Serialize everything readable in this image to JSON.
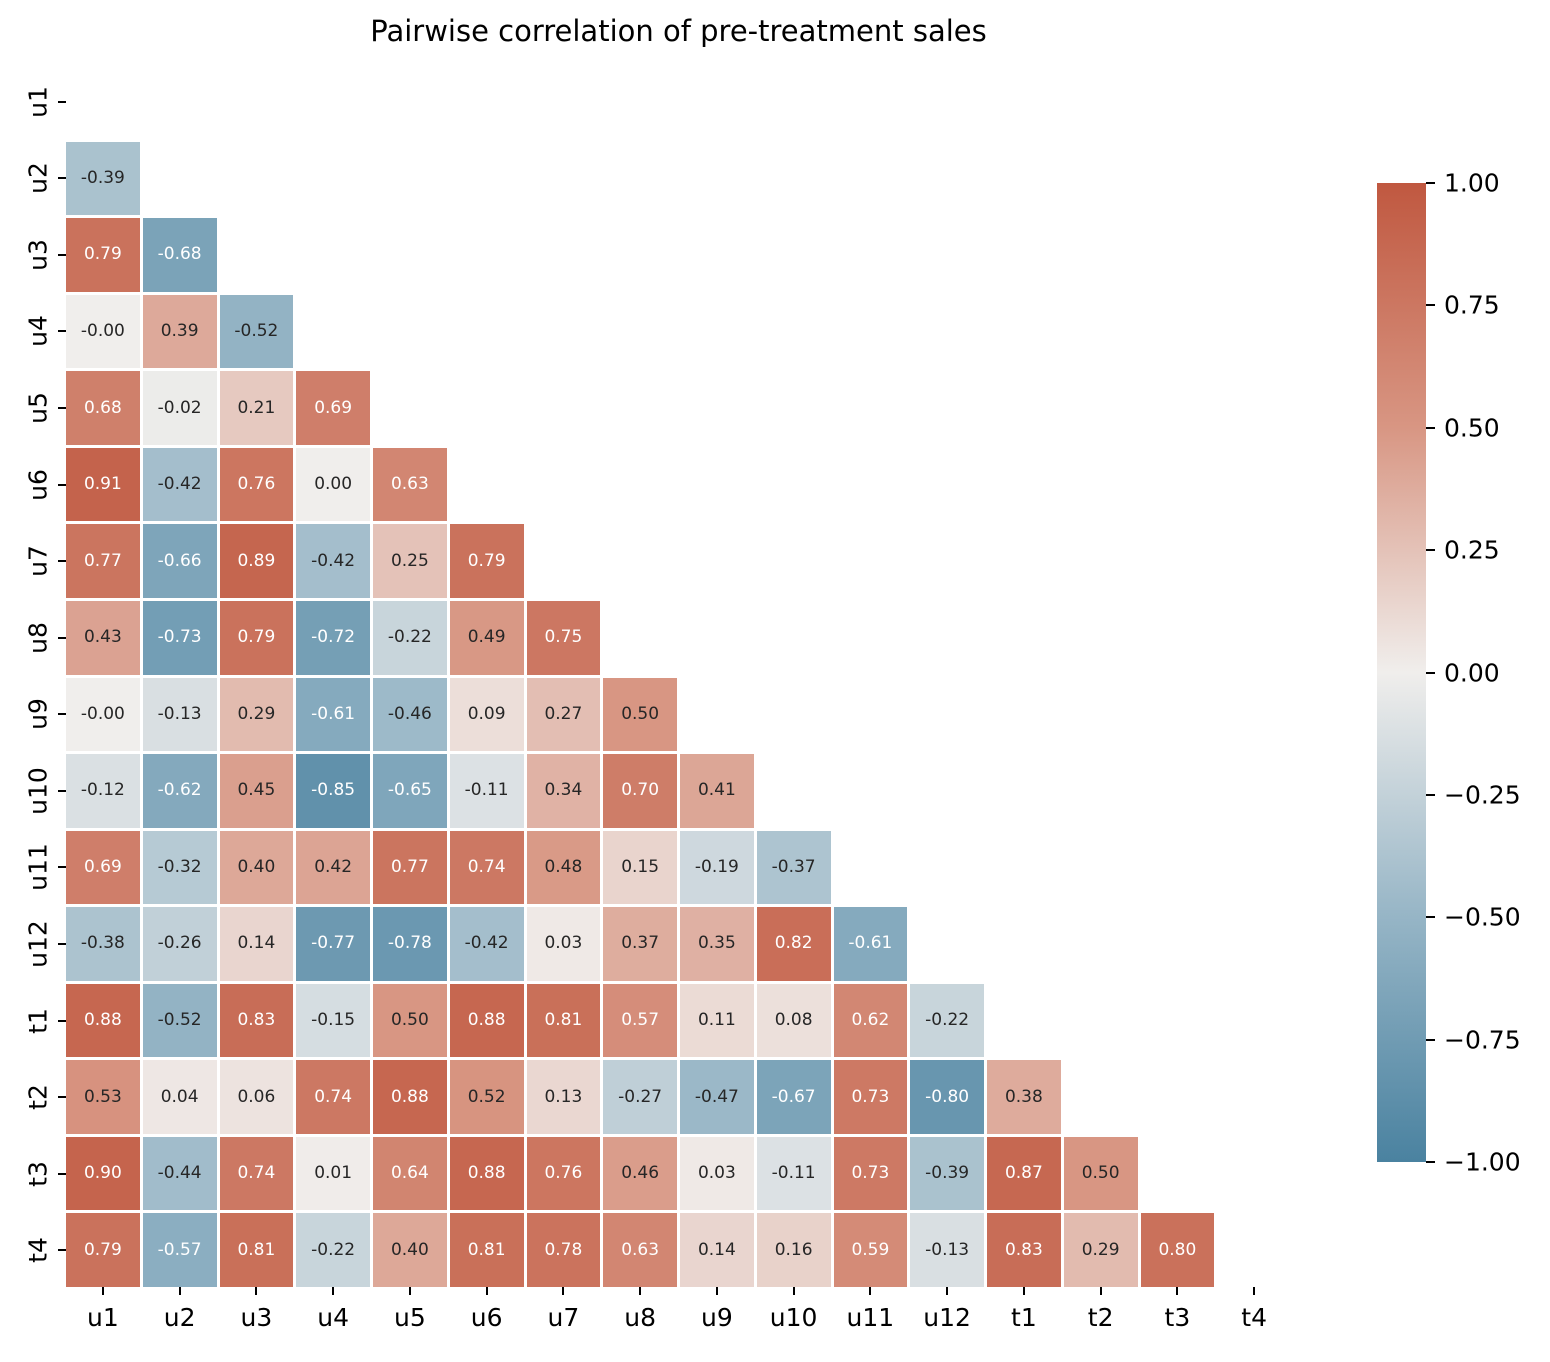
{
  "chart_data": {
    "type": "heatmap",
    "title": "Pairwise correlation of pre-treatment sales",
    "mask": "upper-triangle-and-diagonal",
    "labels": [
      "u1",
      "u2",
      "u3",
      "u4",
      "u5",
      "u6",
      "u7",
      "u8",
      "u9",
      "u10",
      "u11",
      "u12",
      "t1",
      "t2",
      "t3",
      "t4"
    ],
    "matrix": [
      [],
      [
        "-0.39"
      ],
      [
        "0.79",
        "-0.68"
      ],
      [
        "-0.00",
        "0.39",
        "-0.52"
      ],
      [
        "0.68",
        "-0.02",
        "0.21",
        "0.69"
      ],
      [
        "0.91",
        "-0.42",
        "0.76",
        "0.00",
        "0.63"
      ],
      [
        "0.77",
        "-0.66",
        "0.89",
        "-0.42",
        "0.25",
        "0.79"
      ],
      [
        "0.43",
        "-0.73",
        "0.79",
        "-0.72",
        "-0.22",
        "0.49",
        "0.75"
      ],
      [
        "-0.00",
        "-0.13",
        "0.29",
        "-0.61",
        "-0.46",
        "0.09",
        "0.27",
        "0.50"
      ],
      [
        "-0.12",
        "-0.62",
        "0.45",
        "-0.85",
        "-0.65",
        "-0.11",
        "0.34",
        "0.70",
        "0.41"
      ],
      [
        "0.69",
        "-0.32",
        "0.40",
        "0.42",
        "0.77",
        "0.74",
        "0.48",
        "0.15",
        "-0.19",
        "-0.37"
      ],
      [
        "-0.38",
        "-0.26",
        "0.14",
        "-0.77",
        "-0.78",
        "-0.42",
        "0.03",
        "0.37",
        "0.35",
        "0.82",
        "-0.61"
      ],
      [
        "0.88",
        "-0.52",
        "0.83",
        "-0.15",
        "0.50",
        "0.88",
        "0.81",
        "0.57",
        "0.11",
        "0.08",
        "0.62",
        "-0.22"
      ],
      [
        "0.53",
        "0.04",
        "0.06",
        "0.74",
        "0.88",
        "0.52",
        "0.13",
        "-0.27",
        "-0.47",
        "-0.67",
        "0.73",
        "-0.80",
        "0.38"
      ],
      [
        "0.90",
        "-0.44",
        "0.74",
        "0.01",
        "0.64",
        "0.88",
        "0.76",
        "0.46",
        "0.03",
        "-0.11",
        "0.73",
        "-0.39",
        "0.87",
        "0.50"
      ],
      [
        "0.79",
        "-0.57",
        "0.81",
        "-0.22",
        "0.40",
        "0.81",
        "0.78",
        "0.63",
        "0.14",
        "0.16",
        "0.59",
        "-0.13",
        "0.83",
        "0.29",
        "0.80"
      ]
    ],
    "colorbar": {
      "min": -1,
      "max": 1,
      "ticks": [
        {
          "value": 1.0,
          "label": "1.00"
        },
        {
          "value": 0.75,
          "label": "0.75"
        },
        {
          "value": 0.5,
          "label": "0.50"
        },
        {
          "value": 0.25,
          "label": "0.25"
        },
        {
          "value": 0.0,
          "label": "0.00"
        },
        {
          "value": -0.25,
          "label": "−0.25"
        },
        {
          "value": -0.5,
          "label": "−0.50"
        },
        {
          "value": -0.75,
          "label": "−0.75"
        },
        {
          "value": -1.0,
          "label": "−1.00"
        }
      ]
    },
    "colormap": {
      "stops": [
        {
          "value": -1.0,
          "color": "#4A82A0"
        },
        {
          "value": -0.5,
          "color": "#96B5C6"
        },
        {
          "value": 0.0,
          "color": "#F0EEEC"
        },
        {
          "value": 0.5,
          "color": "#D89683"
        },
        {
          "value": 1.0,
          "color": "#C05840"
        }
      ]
    },
    "annotation_colors": {
      "light_text": "#FFFFFF",
      "dark_text": "#262626",
      "white_text_abs_threshold": 0.55
    },
    "axis_color": "#000000",
    "background": "#FFFFFF"
  }
}
